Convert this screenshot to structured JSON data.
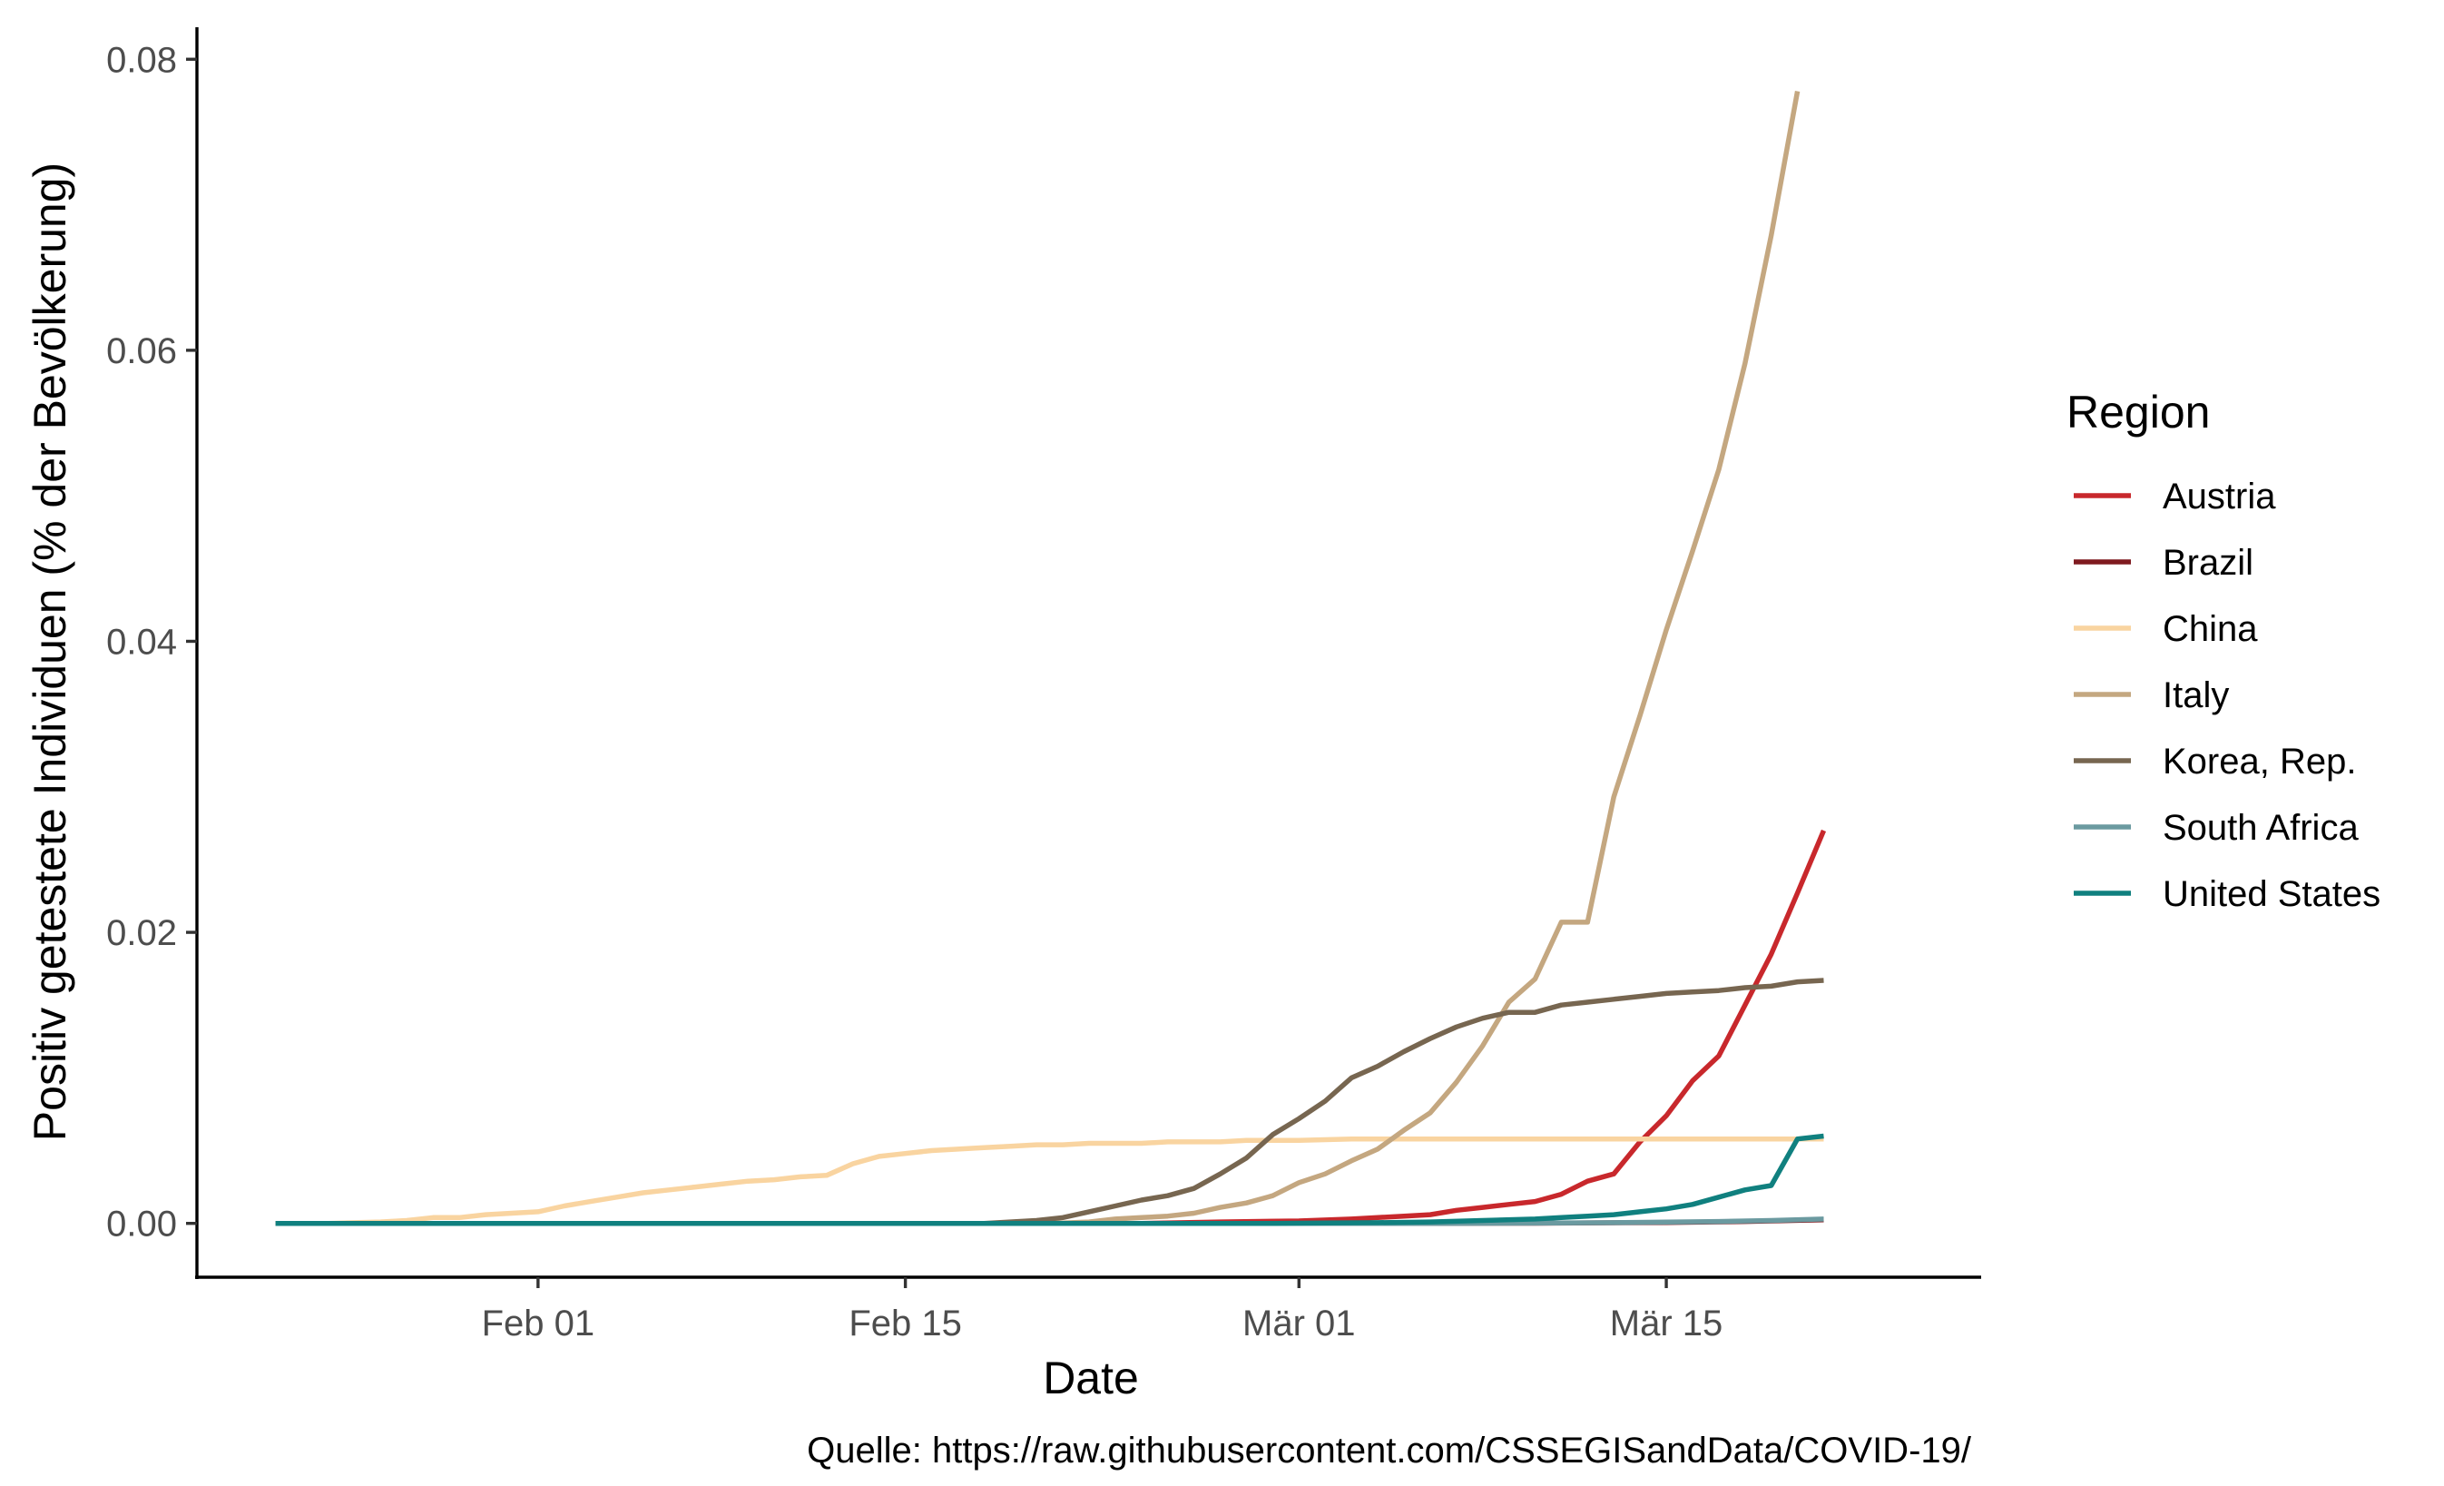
{
  "chart_data": {
    "type": "line",
    "xlabel": "Date",
    "ylabel": "Positiv getestete Individuen (% der Bevölkerung)",
    "caption": "Quelle: https://raw.githubusercontent.com/CSSEGISandData/COVID-19/",
    "legend_title": "Region",
    "legend_position": "right",
    "grid": false,
    "xlim": [
      "2020-01-19",
      "2020-03-27"
    ],
    "ylim": [
      -0.0037,
      0.0822
    ],
    "x_ticks": [
      {
        "date": "2020-02-01",
        "label": "Feb 01"
      },
      {
        "date": "2020-02-15",
        "label": "Feb 15"
      },
      {
        "date": "2020-03-01",
        "label": "Mär 01"
      },
      {
        "date": "2020-03-15",
        "label": "Mär 15"
      }
    ],
    "y_ticks": [
      {
        "value": 0,
        "label": "0.00"
      },
      {
        "value": 0.02,
        "label": "0.02"
      },
      {
        "value": 0.04,
        "label": "0.04"
      },
      {
        "value": 0.06,
        "label": "0.06"
      },
      {
        "value": 0.08,
        "label": "0.08"
      }
    ],
    "series": [
      {
        "name": "Austria",
        "color": "#c8282c",
        "points": [
          [
            "2020-01-22",
            0
          ],
          [
            "2020-02-24",
            0
          ],
          [
            "2020-02-27",
            0.0001
          ],
          [
            "2020-03-01",
            0.00017
          ],
          [
            "2020-03-03",
            0.0003
          ],
          [
            "2020-03-05",
            0.0005
          ],
          [
            "2020-03-06",
            0.0006
          ],
          [
            "2020-03-07",
            0.0009
          ],
          [
            "2020-03-08",
            0.0011
          ],
          [
            "2020-03-09",
            0.0013
          ],
          [
            "2020-03-10",
            0.0015
          ],
          [
            "2020-03-11",
            0.002
          ],
          [
            "2020-03-12",
            0.0029
          ],
          [
            "2020-03-13",
            0.0034
          ],
          [
            "2020-03-14",
            0.0056
          ],
          [
            "2020-03-15",
            0.0074
          ],
          [
            "2020-03-16",
            0.0098
          ],
          [
            "2020-03-17",
            0.0115
          ],
          [
            "2020-03-18",
            0.015
          ],
          [
            "2020-03-19",
            0.0185
          ],
          [
            "2020-03-20",
            0.0227
          ],
          [
            "2020-03-21",
            0.027
          ]
        ]
      },
      {
        "name": "Brazil",
        "color": "#7f1a1f",
        "points": [
          [
            "2020-01-22",
            0
          ],
          [
            "2020-03-05",
            0
          ],
          [
            "2020-03-10",
            1e-05
          ],
          [
            "2020-03-15",
            6e-05
          ],
          [
            "2020-03-18",
            0.00013
          ],
          [
            "2020-03-21",
            0.00024
          ]
        ]
      },
      {
        "name": "China",
        "color": "#f9d4a0",
        "points": [
          [
            "2020-01-22",
            0
          ],
          [
            "2020-01-24",
            0
          ],
          [
            "2020-01-26",
            0.0001
          ],
          [
            "2020-01-27",
            0.0002
          ],
          [
            "2020-01-28",
            0.0004
          ],
          [
            "2020-01-29",
            0.0004
          ],
          [
            "2020-01-30",
            0.0006
          ],
          [
            "2020-01-31",
            0.0007
          ],
          [
            "2020-02-01",
            0.0008
          ],
          [
            "2020-02-02",
            0.0012
          ],
          [
            "2020-02-03",
            0.0015
          ],
          [
            "2020-02-04",
            0.0018
          ],
          [
            "2020-02-05",
            0.0021
          ],
          [
            "2020-02-06",
            0.0023
          ],
          [
            "2020-02-07",
            0.0025
          ],
          [
            "2020-02-08",
            0.0027
          ],
          [
            "2020-02-09",
            0.0029
          ],
          [
            "2020-02-10",
            0.003
          ],
          [
            "2020-02-11",
            0.0032
          ],
          [
            "2020-02-12",
            0.0033
          ],
          [
            "2020-02-13",
            0.0041
          ],
          [
            "2020-02-14",
            0.0046
          ],
          [
            "2020-02-15",
            0.0048
          ],
          [
            "2020-02-16",
            0.005
          ],
          [
            "2020-02-17",
            0.0051
          ],
          [
            "2020-02-18",
            0.0052
          ],
          [
            "2020-02-19",
            0.0053
          ],
          [
            "2020-02-20",
            0.0054
          ],
          [
            "2020-02-21",
            0.0054
          ],
          [
            "2020-02-22",
            0.0055
          ],
          [
            "2020-02-23",
            0.0055
          ],
          [
            "2020-02-24",
            0.0055
          ],
          [
            "2020-02-25",
            0.0056
          ],
          [
            "2020-02-26",
            0.0056
          ],
          [
            "2020-02-27",
            0.0056
          ],
          [
            "2020-02-28",
            0.0057
          ],
          [
            "2020-02-29",
            0.0057
          ],
          [
            "2020-03-01",
            0.0057
          ],
          [
            "2020-03-03",
            0.0058
          ],
          [
            "2020-03-06",
            0.0058
          ],
          [
            "2020-03-10",
            0.0058
          ],
          [
            "2020-03-15",
            0.0058
          ],
          [
            "2020-03-21",
            0.0058
          ]
        ]
      },
      {
        "name": "Italy",
        "color": "#c4a780",
        "points": [
          [
            "2020-01-22",
            0
          ],
          [
            "2020-02-20",
            0
          ],
          [
            "2020-02-21",
            3e-05
          ],
          [
            "2020-02-22",
            0.0001
          ],
          [
            "2020-02-23",
            0.0003
          ],
          [
            "2020-02-24",
            0.0004
          ],
          [
            "2020-02-25",
            0.0005
          ],
          [
            "2020-02-26",
            0.0007
          ],
          [
            "2020-02-27",
            0.0011
          ],
          [
            "2020-02-28",
            0.0014
          ],
          [
            "2020-02-29",
            0.0019
          ],
          [
            "2020-03-01",
            0.0028
          ],
          [
            "2020-03-02",
            0.0034
          ],
          [
            "2020-03-03",
            0.0043
          ],
          [
            "2020-03-04",
            0.0051
          ],
          [
            "2020-03-05",
            0.0064
          ],
          [
            "2020-03-06",
            0.0076
          ],
          [
            "2020-03-07",
            0.0097
          ],
          [
            "2020-03-08",
            0.0122
          ],
          [
            "2020-03-09",
            0.0152
          ],
          [
            "2020-03-10",
            0.0168
          ],
          [
            "2020-03-11",
            0.0207
          ],
          [
            "2020-03-12",
            0.0207
          ],
          [
            "2020-03-13",
            0.0293
          ],
          [
            "2020-03-14",
            0.0349
          ],
          [
            "2020-03-15",
            0.0408
          ],
          [
            "2020-03-16",
            0.0462
          ],
          [
            "2020-03-17",
            0.0518
          ],
          [
            "2020-03-18",
            0.0591
          ],
          [
            "2020-03-19",
            0.0679
          ],
          [
            "2020-03-20",
            0.0778
          ]
        ]
      },
      {
        "name": "Korea, Rep.",
        "color": "#776650",
        "points": [
          [
            "2020-01-22",
            0
          ],
          [
            "2020-02-18",
            0
          ],
          [
            "2020-02-19",
            0.0001
          ],
          [
            "2020-02-20",
            0.0002
          ],
          [
            "2020-02-21",
            0.0004
          ],
          [
            "2020-02-22",
            0.0008
          ],
          [
            "2020-02-23",
            0.0012
          ],
          [
            "2020-02-24",
            0.0016
          ],
          [
            "2020-02-25",
            0.0019
          ],
          [
            "2020-02-26",
            0.0024
          ],
          [
            "2020-02-27",
            0.0034
          ],
          [
            "2020-02-28",
            0.0045
          ],
          [
            "2020-02-29",
            0.0061
          ],
          [
            "2020-03-01",
            0.0072
          ],
          [
            "2020-03-02",
            0.0084
          ],
          [
            "2020-03-03",
            0.01
          ],
          [
            "2020-03-04",
            0.0108
          ],
          [
            "2020-03-05",
            0.0118
          ],
          [
            "2020-03-06",
            0.0127
          ],
          [
            "2020-03-07",
            0.0135
          ],
          [
            "2020-03-08",
            0.0141
          ],
          [
            "2020-03-09",
            0.0145
          ],
          [
            "2020-03-10",
            0.0145
          ],
          [
            "2020-03-11",
            0.015
          ],
          [
            "2020-03-12",
            0.0152
          ],
          [
            "2020-03-13",
            0.0154
          ],
          [
            "2020-03-14",
            0.0156
          ],
          [
            "2020-03-15",
            0.0158
          ],
          [
            "2020-03-16",
            0.0159
          ],
          [
            "2020-03-17",
            0.016
          ],
          [
            "2020-03-18",
            0.0162
          ],
          [
            "2020-03-19",
            0.0163
          ],
          [
            "2020-03-20",
            0.0166
          ],
          [
            "2020-03-21",
            0.0167
          ]
        ]
      },
      {
        "name": "South Africa",
        "color": "#6b9aa0",
        "points": [
          [
            "2020-01-22",
            0
          ],
          [
            "2020-03-05",
            0
          ],
          [
            "2020-03-10",
            2e-05
          ],
          [
            "2020-03-13",
            5e-05
          ],
          [
            "2020-03-15",
            9e-05
          ],
          [
            "2020-03-17",
            0.00013
          ],
          [
            "2020-03-19",
            0.0002
          ],
          [
            "2020-03-21",
            0.0003
          ]
        ]
      },
      {
        "name": "United States",
        "color": "#10807f",
        "points": [
          [
            "2020-01-22",
            0
          ],
          [
            "2020-02-29",
            0
          ],
          [
            "2020-03-02",
            3e-05
          ],
          [
            "2020-03-04",
            5e-05
          ],
          [
            "2020-03-06",
            0.0001
          ],
          [
            "2020-03-08",
            0.0002
          ],
          [
            "2020-03-10",
            0.0003
          ],
          [
            "2020-03-11",
            0.0004
          ],
          [
            "2020-03-12",
            0.0005
          ],
          [
            "2020-03-13",
            0.0006
          ],
          [
            "2020-03-14",
            0.0008
          ],
          [
            "2020-03-15",
            0.001
          ],
          [
            "2020-03-16",
            0.0013
          ],
          [
            "2020-03-17",
            0.0018
          ],
          [
            "2020-03-18",
            0.0023
          ],
          [
            "2020-03-19",
            0.0026
          ],
          [
            "2020-03-20",
            0.0058
          ],
          [
            "2020-03-21",
            0.006
          ]
        ]
      }
    ]
  }
}
